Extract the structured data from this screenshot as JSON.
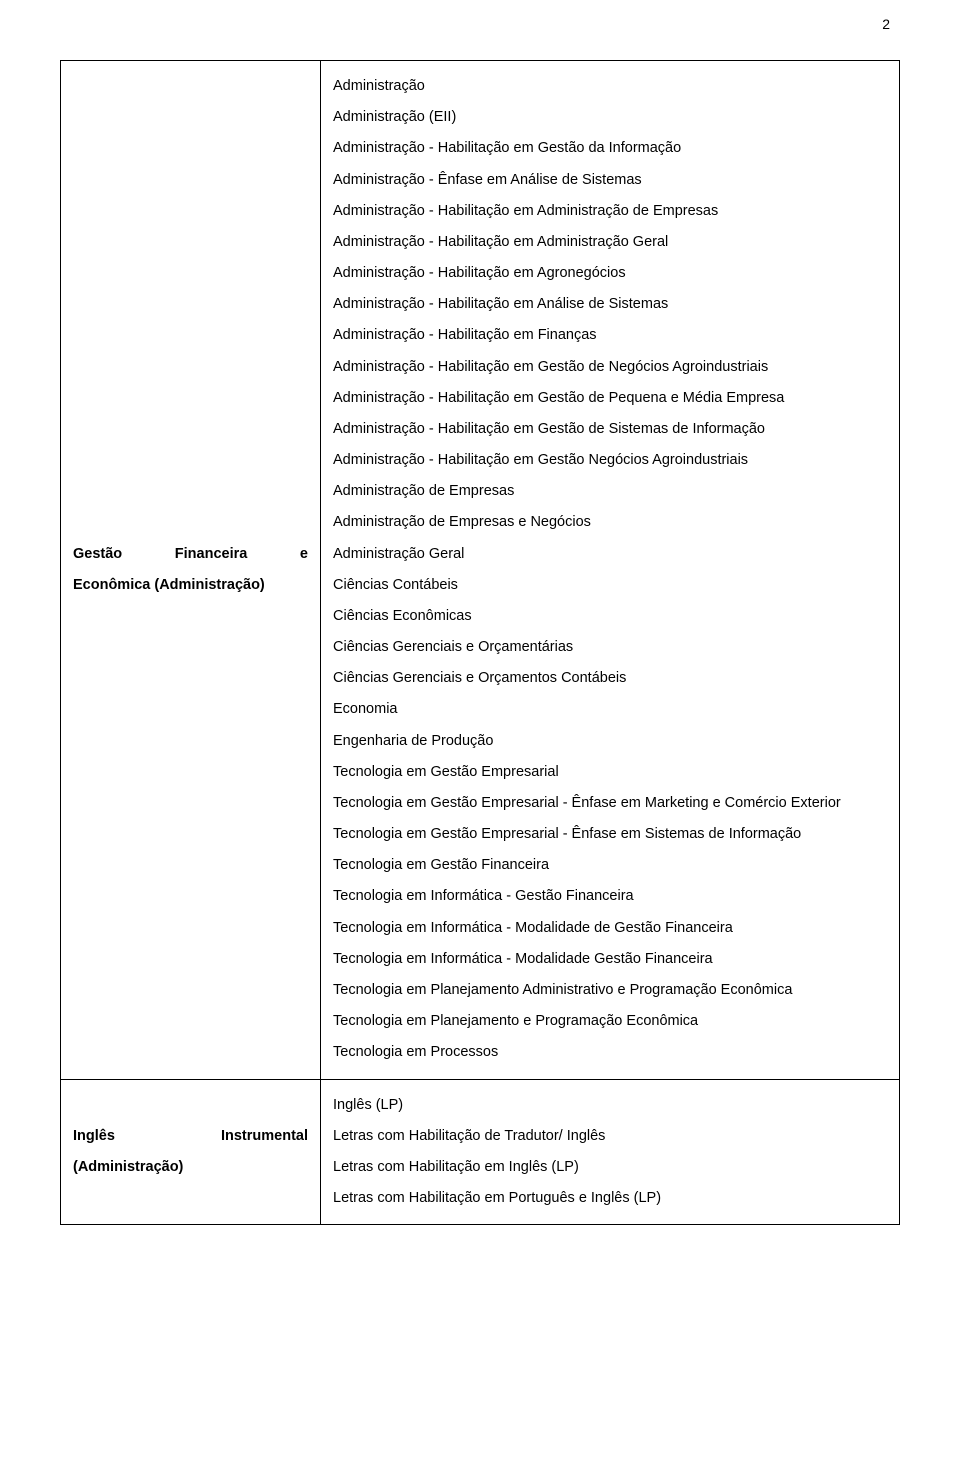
{
  "page_number": "2",
  "rows": [
    {
      "label_lines": [
        [
          "Gestão",
          "Financeira",
          "e"
        ],
        [
          "Econômica (Administração)"
        ]
      ],
      "items": [
        "Administração",
        "Administração (EII)",
        "Administração - Habilitação em Gestão da Informação",
        "Administração - Ênfase em Análise de Sistemas",
        "Administração - Habilitação em Administração de Empresas",
        "Administração - Habilitação em Administração Geral",
        "Administração - Habilitação em Agronegócios",
        "Administração - Habilitação em Análise de Sistemas",
        "Administração - Habilitação em Finanças",
        "Administração - Habilitação em Gestão de Negócios Agroindustriais",
        "Administração - Habilitação em Gestão de Pequena e Média Empresa",
        "Administração - Habilitação em Gestão de Sistemas de Informação",
        "Administração - Habilitação em Gestão Negócios Agroindustriais",
        "Administração de Empresas",
        "Administração de Empresas e Negócios",
        "Administração Geral",
        "Ciências Contábeis",
        "Ciências Econômicas",
        "Ciências Gerenciais e Orçamentárias",
        "Ciências Gerenciais e Orçamentos Contábeis",
        "Economia",
        "Engenharia de Produção",
        "Tecnologia em Gestão Empresarial",
        "Tecnologia em Gestão Empresarial - Ênfase em Marketing e Comércio Exterior",
        "Tecnologia em Gestão Empresarial - Ênfase em Sistemas de Informação",
        "Tecnologia em Gestão Financeira",
        "Tecnologia em Informática - Gestão Financeira",
        "Tecnologia em Informática - Modalidade de Gestão Financeira",
        "Tecnologia em Informática - Modalidade Gestão Financeira",
        "Tecnologia em Planejamento Administrativo e Programação Econômica",
        "Tecnologia em Planejamento e Programação Econômica",
        "Tecnologia em Processos"
      ]
    },
    {
      "label_lines": [
        [
          "Inglês",
          "Instrumental"
        ],
        [
          "(Administração)"
        ]
      ],
      "items": [
        "Inglês (LP)",
        "Letras com Habilitação de Tradutor/ Inglês",
        "Letras com Habilitação em Inglês (LP)",
        "Letras com Habilitação em Português e Inglês (LP)"
      ]
    }
  ]
}
